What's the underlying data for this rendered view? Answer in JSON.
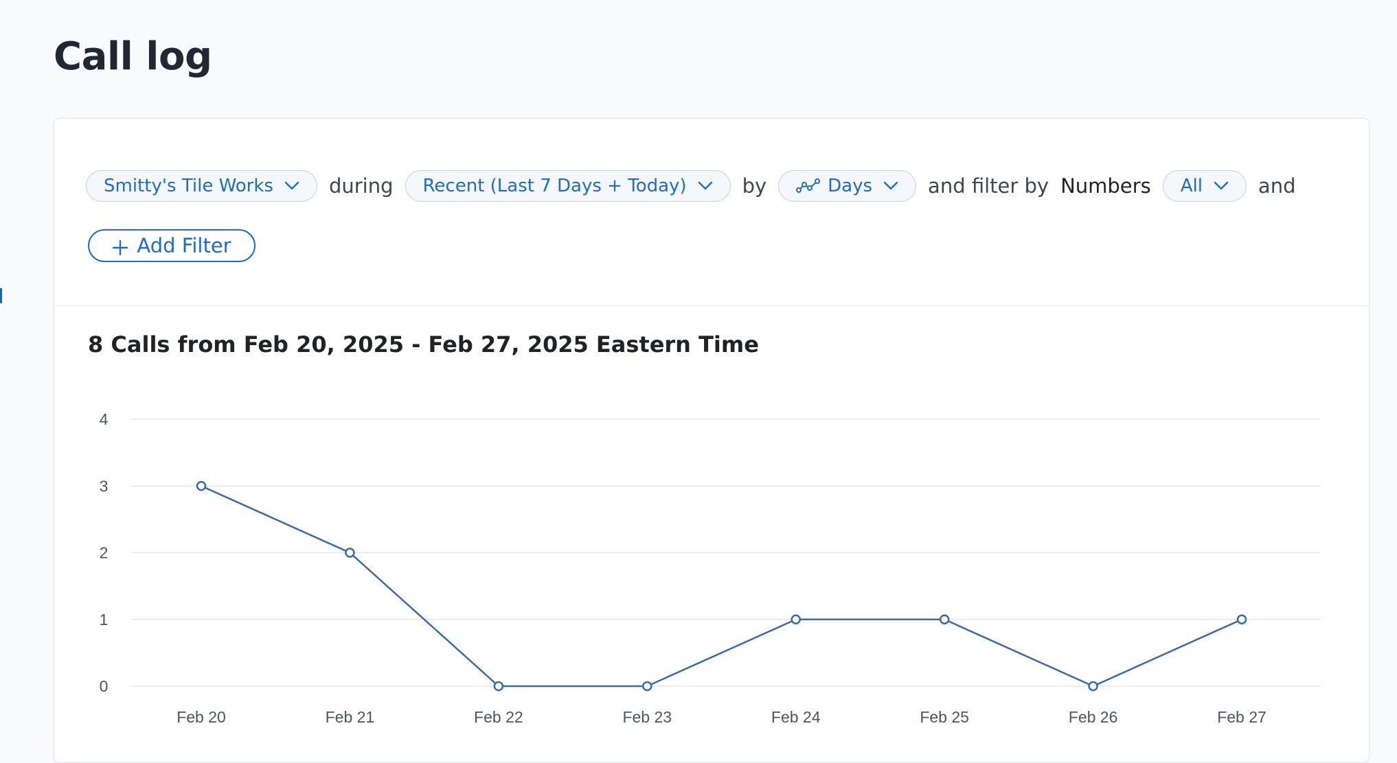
{
  "page": {
    "title": "Call log"
  },
  "filters": {
    "account": "Smitty's Tile Works",
    "during_label": "during",
    "period": "Recent (Last 7 Days + Today)",
    "by_label": "by",
    "granularity": "Days",
    "and_filter_by_label": "and filter by",
    "numbers_label": "Numbers",
    "numbers_value": "All",
    "and_label": "and",
    "add_filter_label": "Add Filter"
  },
  "colors": {
    "accent": "#1f6cc7",
    "line": "#3a6aa8",
    "grid": "#e5e7eb"
  },
  "chart_data": {
    "type": "line",
    "title": "8 Calls from Feb 20, 2025 - Feb 27, 2025 Eastern Time",
    "categories": [
      "Feb 20",
      "Feb 21",
      "Feb 22",
      "Feb 23",
      "Feb 24",
      "Feb 25",
      "Feb 26",
      "Feb 27"
    ],
    "series": [
      {
        "values": [
          3,
          2,
          0,
          0,
          1,
          1,
          0,
          1
        ]
      }
    ],
    "y_ticks": [
      0,
      1,
      2,
      3,
      4
    ],
    "ylim": [
      0,
      4
    ],
    "grid": true,
    "legend": "none"
  }
}
